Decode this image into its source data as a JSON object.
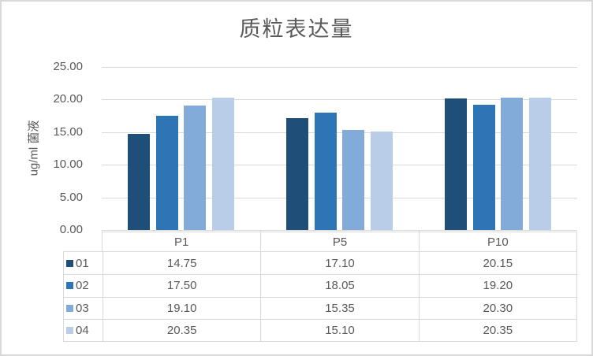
{
  "chart_data": {
    "type": "bar",
    "title": "质粒表达量",
    "ylabel": "ug/ml 菌液",
    "xlabel": "",
    "categories": [
      "P1",
      "P5",
      "P10"
    ],
    "series": [
      {
        "name": "01",
        "color": "#1F4E79",
        "values": [
          14.75,
          17.1,
          20.15
        ]
      },
      {
        "name": "02",
        "color": "#2E75B6",
        "values": [
          17.5,
          18.05,
          19.2
        ]
      },
      {
        "name": "03",
        "color": "#82ABD9",
        "values": [
          19.1,
          15.35,
          20.3
        ]
      },
      {
        "name": "04",
        "color": "#BACDE8",
        "values": [
          20.35,
          15.1,
          20.35
        ]
      }
    ],
    "ylim": [
      0,
      25
    ],
    "ytick_labels": [
      "25.00",
      "20.00",
      "15.00",
      "10.00",
      "5.00",
      "0.00"
    ],
    "value_format_decimals": 2,
    "grid": true,
    "legend_position": "data-table-left",
    "colors": {
      "text": "#595959",
      "gridline": "#D9D9D9",
      "table_border": "#D9D9D9",
      "frame_border": "#D9D9D9",
      "background": "#FFFFFF"
    }
  }
}
